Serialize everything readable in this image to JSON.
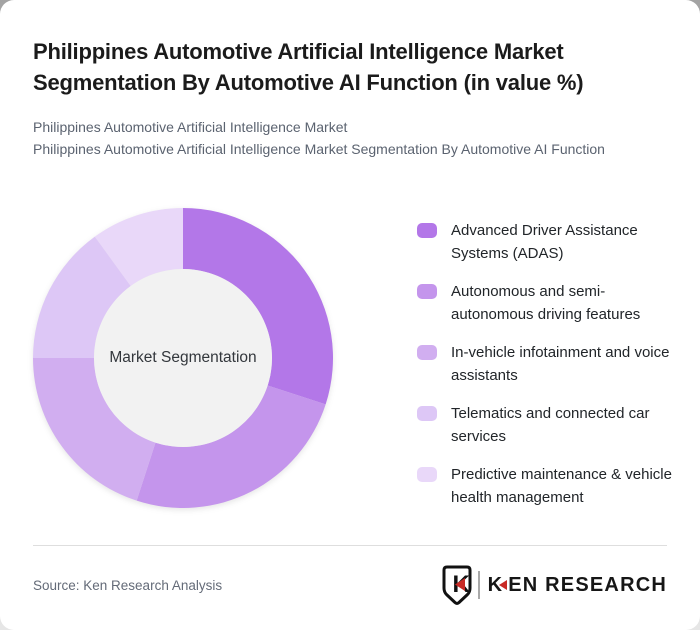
{
  "header": {
    "title": "Philippines Automotive Artificial Intelligence Market Segmentation By Automotive AI Function (in value %)",
    "subtitle1": "Philippines Automotive Artificial Intelligence Market",
    "subtitle2": "Philippines Automotive Artificial Intelligence Market Segmentation By Automotive AI Function"
  },
  "chart_data": {
    "type": "pie",
    "subtype": "donut",
    "title": "Philippines Automotive Artificial Intelligence Market Segmentation By Automotive AI Function (in value %)",
    "center_label": "Market Segmentation",
    "unit": "value %",
    "start_angle_deg": 0,
    "inner_radius_ratio": 0.593,
    "legend_position": "right",
    "inner_circle_color": "#f2f2f2",
    "segments": [
      {
        "label": "Advanced Driver Assistance Systems (ADAS)",
        "value": 30,
        "color": "#b377e8"
      },
      {
        "label": "Autonomous and semi-autonomous driving features",
        "value": 25,
        "color": "#c495ec"
      },
      {
        "label": "In-vehicle infotainment and voice assistants",
        "value": 20,
        "color": "#d1aef0"
      },
      {
        "label": "Telematics and connected car services",
        "value": 15,
        "color": "#ddc7f6"
      },
      {
        "label": "Predictive maintenance & vehicle health management",
        "value": 10,
        "color": "#e9d8f9"
      }
    ]
  },
  "footer": {
    "source": "Source: Ken Research Analysis",
    "logo_monogram": "K",
    "logo_k": "K",
    "logo_rest": "EN RESEARCH",
    "logo_red": "#c92a25"
  }
}
